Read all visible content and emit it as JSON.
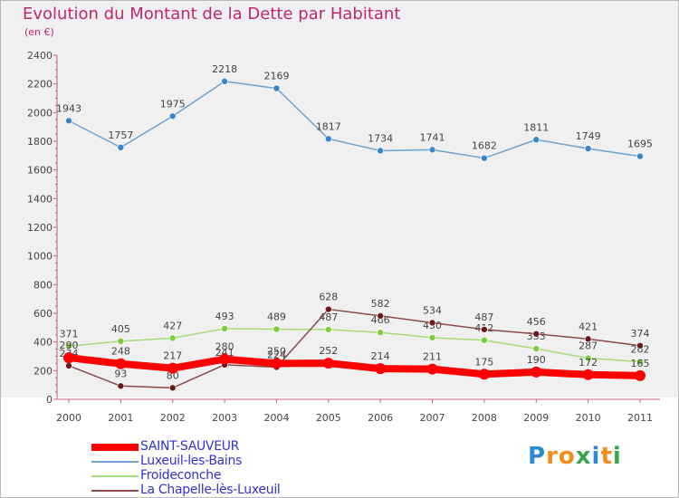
{
  "title": "Evolution du Montant de la Dette par Habitant",
  "subtitle": "(en €)",
  "logo": {
    "letters": [
      "P",
      "r",
      "o",
      "x",
      "i",
      "t",
      "i"
    ],
    "colors": [
      "#2f8ad1",
      "#f28c1b",
      "#f28c1b",
      "#3aa64a",
      "#2f8ad1",
      "#f28c1b",
      "#3aa64a"
    ]
  },
  "chart_data": {
    "type": "line",
    "title": "Evolution du Montant de la Dette par Habitant",
    "ylabel": "(en €)",
    "xlabel": "",
    "ylim": [
      0,
      2400
    ],
    "yticks": [
      0,
      200,
      400,
      600,
      800,
      1000,
      1200,
      1400,
      1600,
      1800,
      2000,
      2200,
      2400
    ],
    "categories": [
      "2000",
      "2001",
      "2002",
      "2003",
      "2004",
      "2005",
      "2006",
      "2007",
      "2008",
      "2009",
      "2010",
      "2011"
    ],
    "series": [
      {
        "name": "Luxeuil-les-Bains",
        "color": "#6fa3d0",
        "dot": "#3a86c8",
        "values": [
          1943,
          1757,
          1975,
          2218,
          2169,
          1817,
          1734,
          1741,
          1682,
          1811,
          1749,
          1695
        ]
      },
      {
        "name": "Froideconche",
        "color": "#a6dc7a",
        "dot": "#7ccc3c",
        "values": [
          371,
          405,
          427,
          493,
          489,
          487,
          466,
          430,
          412,
          353,
          287,
          262
        ]
      },
      {
        "name": "La Chapelle-lès-Luxeuil",
        "color": "#8b4a4a",
        "dot": "#6b1a1a",
        "values": [
          234,
          93,
          80,
          241,
          224,
          628,
          582,
          534,
          487,
          456,
          421,
          374
        ]
      },
      {
        "name": "SAINT-SAUVEUR",
        "color": "#ff0000",
        "dot": "#ff0000",
        "values": [
          290,
          248,
          217,
          280,
          250,
          252,
          214,
          211,
          175,
          190,
          172,
          165
        ]
      }
    ],
    "legend": [
      {
        "name": "SAINT-SAUVEUR",
        "color": "#ff0000"
      },
      {
        "name": "Luxeuil-les-Bains",
        "color": "#6fa3d0"
      },
      {
        "name": "Froideconche",
        "color": "#a6dc7a"
      },
      {
        "name": "La Chapelle-lès-Luxeuil",
        "color": "#8b4a4a"
      }
    ],
    "legend_position": "bottom-left",
    "grid": false
  }
}
